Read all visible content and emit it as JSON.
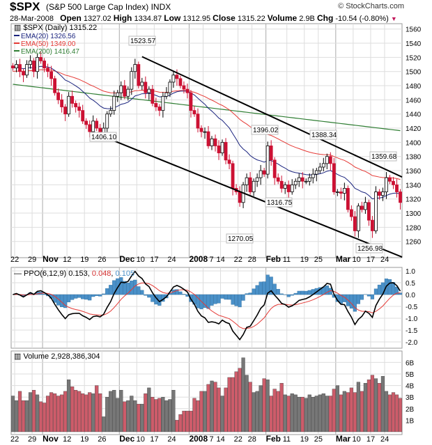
{
  "header": {
    "symbol": "$SPX",
    "name": "(S&P 500 Large Cap Index)",
    "exchange": "INDX",
    "copyright": "© StockCharts.com",
    "date": "28-Mar-2008",
    "open_label": "Open",
    "open": "1327.02",
    "high_label": "High",
    "high": "1334.87",
    "low_label": "Low",
    "low": "1312.95",
    "close_label": "Close",
    "close": "1315.22",
    "volume_label": "Volume",
    "volume": "2.9B",
    "chg_label": "Chg",
    "chg": "-10.54 (-0.80%)",
    "chg_icon": "down-triangle-icon"
  },
  "colors": {
    "up": "#000000",
    "down": "#cc1133",
    "ema20": "#1a237e",
    "ema50": "#e53935",
    "ema200": "#2e7d32",
    "ppo_hist": "#4a90c8",
    "ppo_signal": "#e53935",
    "vol_up": "#777777",
    "vol_down": "#cd5c6a"
  },
  "chart_data": [
    {
      "type": "candlestick",
      "title": "$SPX (Daily) 1315.22",
      "legend": [
        {
          "name": "EMA(20) 1326.56",
          "color": "#1a237e"
        },
        {
          "name": "EMA(50) 1349.00",
          "color": "#e53935"
        },
        {
          "name": "EMA(200) 1416.47",
          "color": "#2e7d32"
        }
      ],
      "ylim": [
        1240,
        1570
      ],
      "yticks": [
        1260,
        1280,
        1300,
        1320,
        1340,
        1360,
        1380,
        1400,
        1420,
        1440,
        1460,
        1480,
        1500,
        1520,
        1540,
        1560
      ],
      "close": [
        1505,
        1510,
        1500,
        1495,
        1510,
        1515,
        1500,
        1520,
        1515,
        1505,
        1500,
        1490,
        1470,
        1460,
        1450,
        1440,
        1465,
        1455,
        1450,
        1445,
        1430,
        1425,
        1415,
        1430,
        1420,
        1410,
        1420,
        1440,
        1445,
        1465,
        1470,
        1480,
        1465,
        1475,
        1500,
        1510,
        1480,
        1485,
        1470,
        1475,
        1455,
        1450,
        1445,
        1465,
        1470,
        1485,
        1495,
        1490,
        1480,
        1475,
        1470,
        1445,
        1440,
        1420,
        1415,
        1415,
        1395,
        1405,
        1395,
        1385,
        1400,
        1375,
        1370,
        1335,
        1330,
        1315,
        1340,
        1350,
        1330,
        1345,
        1350,
        1360,
        1355,
        1395,
        1375,
        1350,
        1345,
        1335,
        1340,
        1330,
        1340,
        1345,
        1350,
        1345,
        1345,
        1350,
        1355,
        1360,
        1365,
        1370,
        1380,
        1370,
        1330,
        1330,
        1328,
        1335,
        1305,
        1295,
        1275,
        1310,
        1305,
        1315,
        1290,
        1275,
        1330,
        1325,
        1330,
        1350,
        1345,
        1340,
        1330,
        1315
      ],
      "ema200": [
        1482,
        1416.47
      ],
      "annotations": [
        "1523.57",
        "1406.10",
        "1396.02",
        "1388.34",
        "1359.68",
        "1316.75",
        "1270.05",
        "1256.98"
      ],
      "trendlines": [
        {
          "from": [
            "Dec 11",
            "1523.57"
          ],
          "to": [
            "Mar 28",
            "~1350"
          ]
        },
        {
          "from": [
            "Nov 26",
            "1406.10"
          ],
          "to": [
            "Mar 28",
            "~1240"
          ]
        }
      ]
    },
    {
      "type": "line+bar",
      "title": "PPO(6,12,9) 0.153",
      "signal": "0.048",
      "hist": "0.105",
      "ylim": [
        -2.4,
        1.1
      ],
      "yticks": [
        "1.0",
        "0.5",
        "0.0",
        "-0.5",
        "-1.0",
        "-1.5",
        "-2.0"
      ]
    },
    {
      "type": "bar",
      "title": "Volume 2,928,386,304",
      "unit": "B",
      "ylim": [
        0,
        7
      ],
      "yticks": [
        "1B",
        "2B",
        "3B",
        "4B",
        "5B",
        "6B"
      ],
      "values": [
        3.1,
        2.7,
        3.5,
        2.7,
        2.7,
        3.4,
        3.6,
        3.2,
        2.6,
        2.5,
        3.1,
        3.4,
        3.3,
        3.1,
        3.2,
        3.5,
        4.5,
        3.9,
        3.6,
        3.5,
        3.3,
        3.2,
        3.4,
        3.3,
        4.0,
        3.3,
        1.3,
        3.0,
        3.5,
        3.6,
        2.9,
        3.6,
        2.6,
        2.7,
        3.1,
        2.7,
        2.4,
        2.4,
        3.3,
        3.8,
        3.0,
        2.8,
        2.9,
        3.0,
        2.7,
        2.8,
        3.6,
        1.0,
        1.5,
        1.8,
        1.8,
        1.8,
        2.9,
        2.7,
        3.5,
        3.5,
        4.1,
        4.4,
        4.3,
        3.8,
        3.1,
        3.8,
        4.7,
        4.7,
        5.2,
        5.5,
        6.4,
        4.9,
        4.3,
        3.4,
        3.5,
        4.0,
        4.6,
        4.5,
        3.1,
        3.7,
        3.5,
        4.2,
        3.2,
        3.1,
        3.3,
        3.2,
        3.0,
        3.0,
        2.9,
        3.2,
        3.0,
        3.1,
        3.2,
        3.3,
        3.1,
        3.1,
        3.7,
        4.0,
        3.2,
        3.5,
        3.4,
        3.8,
        3.4,
        4.3,
        3.5,
        4.2,
        4.5,
        4.9,
        4.6,
        4.2,
        4.8,
        3.5,
        3.2,
        3.4,
        3.2,
        2.9
      ]
    }
  ],
  "xticks": [
    {
      "label": "22",
      "session": 1
    },
    {
      "label": "29",
      "session": 6
    },
    {
      "label": "Nov",
      "session": 9,
      "bold": true
    },
    {
      "label": "12",
      "session": 16
    },
    {
      "label": "19",
      "session": 21
    },
    {
      "label": "26",
      "session": 26
    },
    {
      "label": "Dec",
      "session": 31,
      "bold": true
    },
    {
      "label": "10",
      "session": 36
    },
    {
      "label": "17",
      "session": 41
    },
    {
      "label": "24",
      "session": 46
    },
    {
      "label": "2008",
      "session": 51,
      "bold": true
    },
    {
      "label": "7",
      "session": 55
    },
    {
      "label": "14",
      "session": 60
    },
    {
      "label": "22",
      "session": 65
    },
    {
      "label": "28",
      "session": 69
    },
    {
      "label": "Feb",
      "session": 73,
      "bold": true
    },
    {
      "label": "11",
      "session": 79
    },
    {
      "label": "19",
      "session": 84
    },
    {
      "label": "25",
      "session": 88
    },
    {
      "label": "Mar",
      "session": 93,
      "bold": true
    },
    {
      "label": "10",
      "session": 98
    },
    {
      "label": "17",
      "session": 103
    },
    {
      "label": "24",
      "session": 107
    }
  ]
}
